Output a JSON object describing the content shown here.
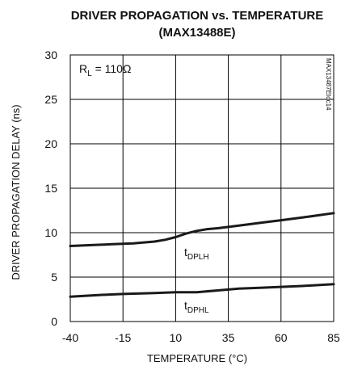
{
  "chart_data": {
    "type": "line",
    "title": "DRIVER PROPAGATION vs. TEMPERATURE",
    "subtitle": "(MAX13488E)",
    "xlabel": "TEMPERATURE (°C)",
    "ylabel": "DRIVER PROPAGATION DELAY (ns)",
    "xlim": [
      -40,
      85
    ],
    "ylim": [
      0,
      30
    ],
    "xticks": [
      -40,
      -15,
      10,
      35,
      60,
      85
    ],
    "yticks": [
      0,
      5,
      10,
      15,
      20,
      25,
      30
    ],
    "xtick_labels": [
      "-40",
      "-15",
      "10",
      "35",
      "60",
      "85"
    ],
    "ytick_labels": [
      "0",
      "5",
      "10",
      "15",
      "20",
      "25",
      "30"
    ],
    "grid": true,
    "condition": {
      "main": "R",
      "sub": "L",
      "rest": " = 110Ω"
    },
    "figure_code": "MAX13487Etoc14",
    "series": [
      {
        "name": "tDPLH",
        "label_main": "t",
        "label_sub": "DPLH",
        "x": [
          -40,
          -30,
          -20,
          -10,
          0,
          5,
          10,
          15,
          20,
          25,
          30,
          40,
          50,
          60,
          70,
          85
        ],
        "y": [
          8.5,
          8.6,
          8.7,
          8.8,
          9.0,
          9.2,
          9.5,
          9.9,
          10.2,
          10.4,
          10.5,
          10.8,
          11.1,
          11.4,
          11.7,
          12.2
        ]
      },
      {
        "name": "tDPHL",
        "label_main": "t",
        "label_sub": "DPHL",
        "x": [
          -40,
          -25,
          -15,
          0,
          10,
          20,
          30,
          40,
          50,
          60,
          70,
          85
        ],
        "y": [
          2.8,
          3.0,
          3.1,
          3.2,
          3.3,
          3.3,
          3.5,
          3.7,
          3.8,
          3.9,
          4.0,
          4.2
        ]
      }
    ]
  }
}
